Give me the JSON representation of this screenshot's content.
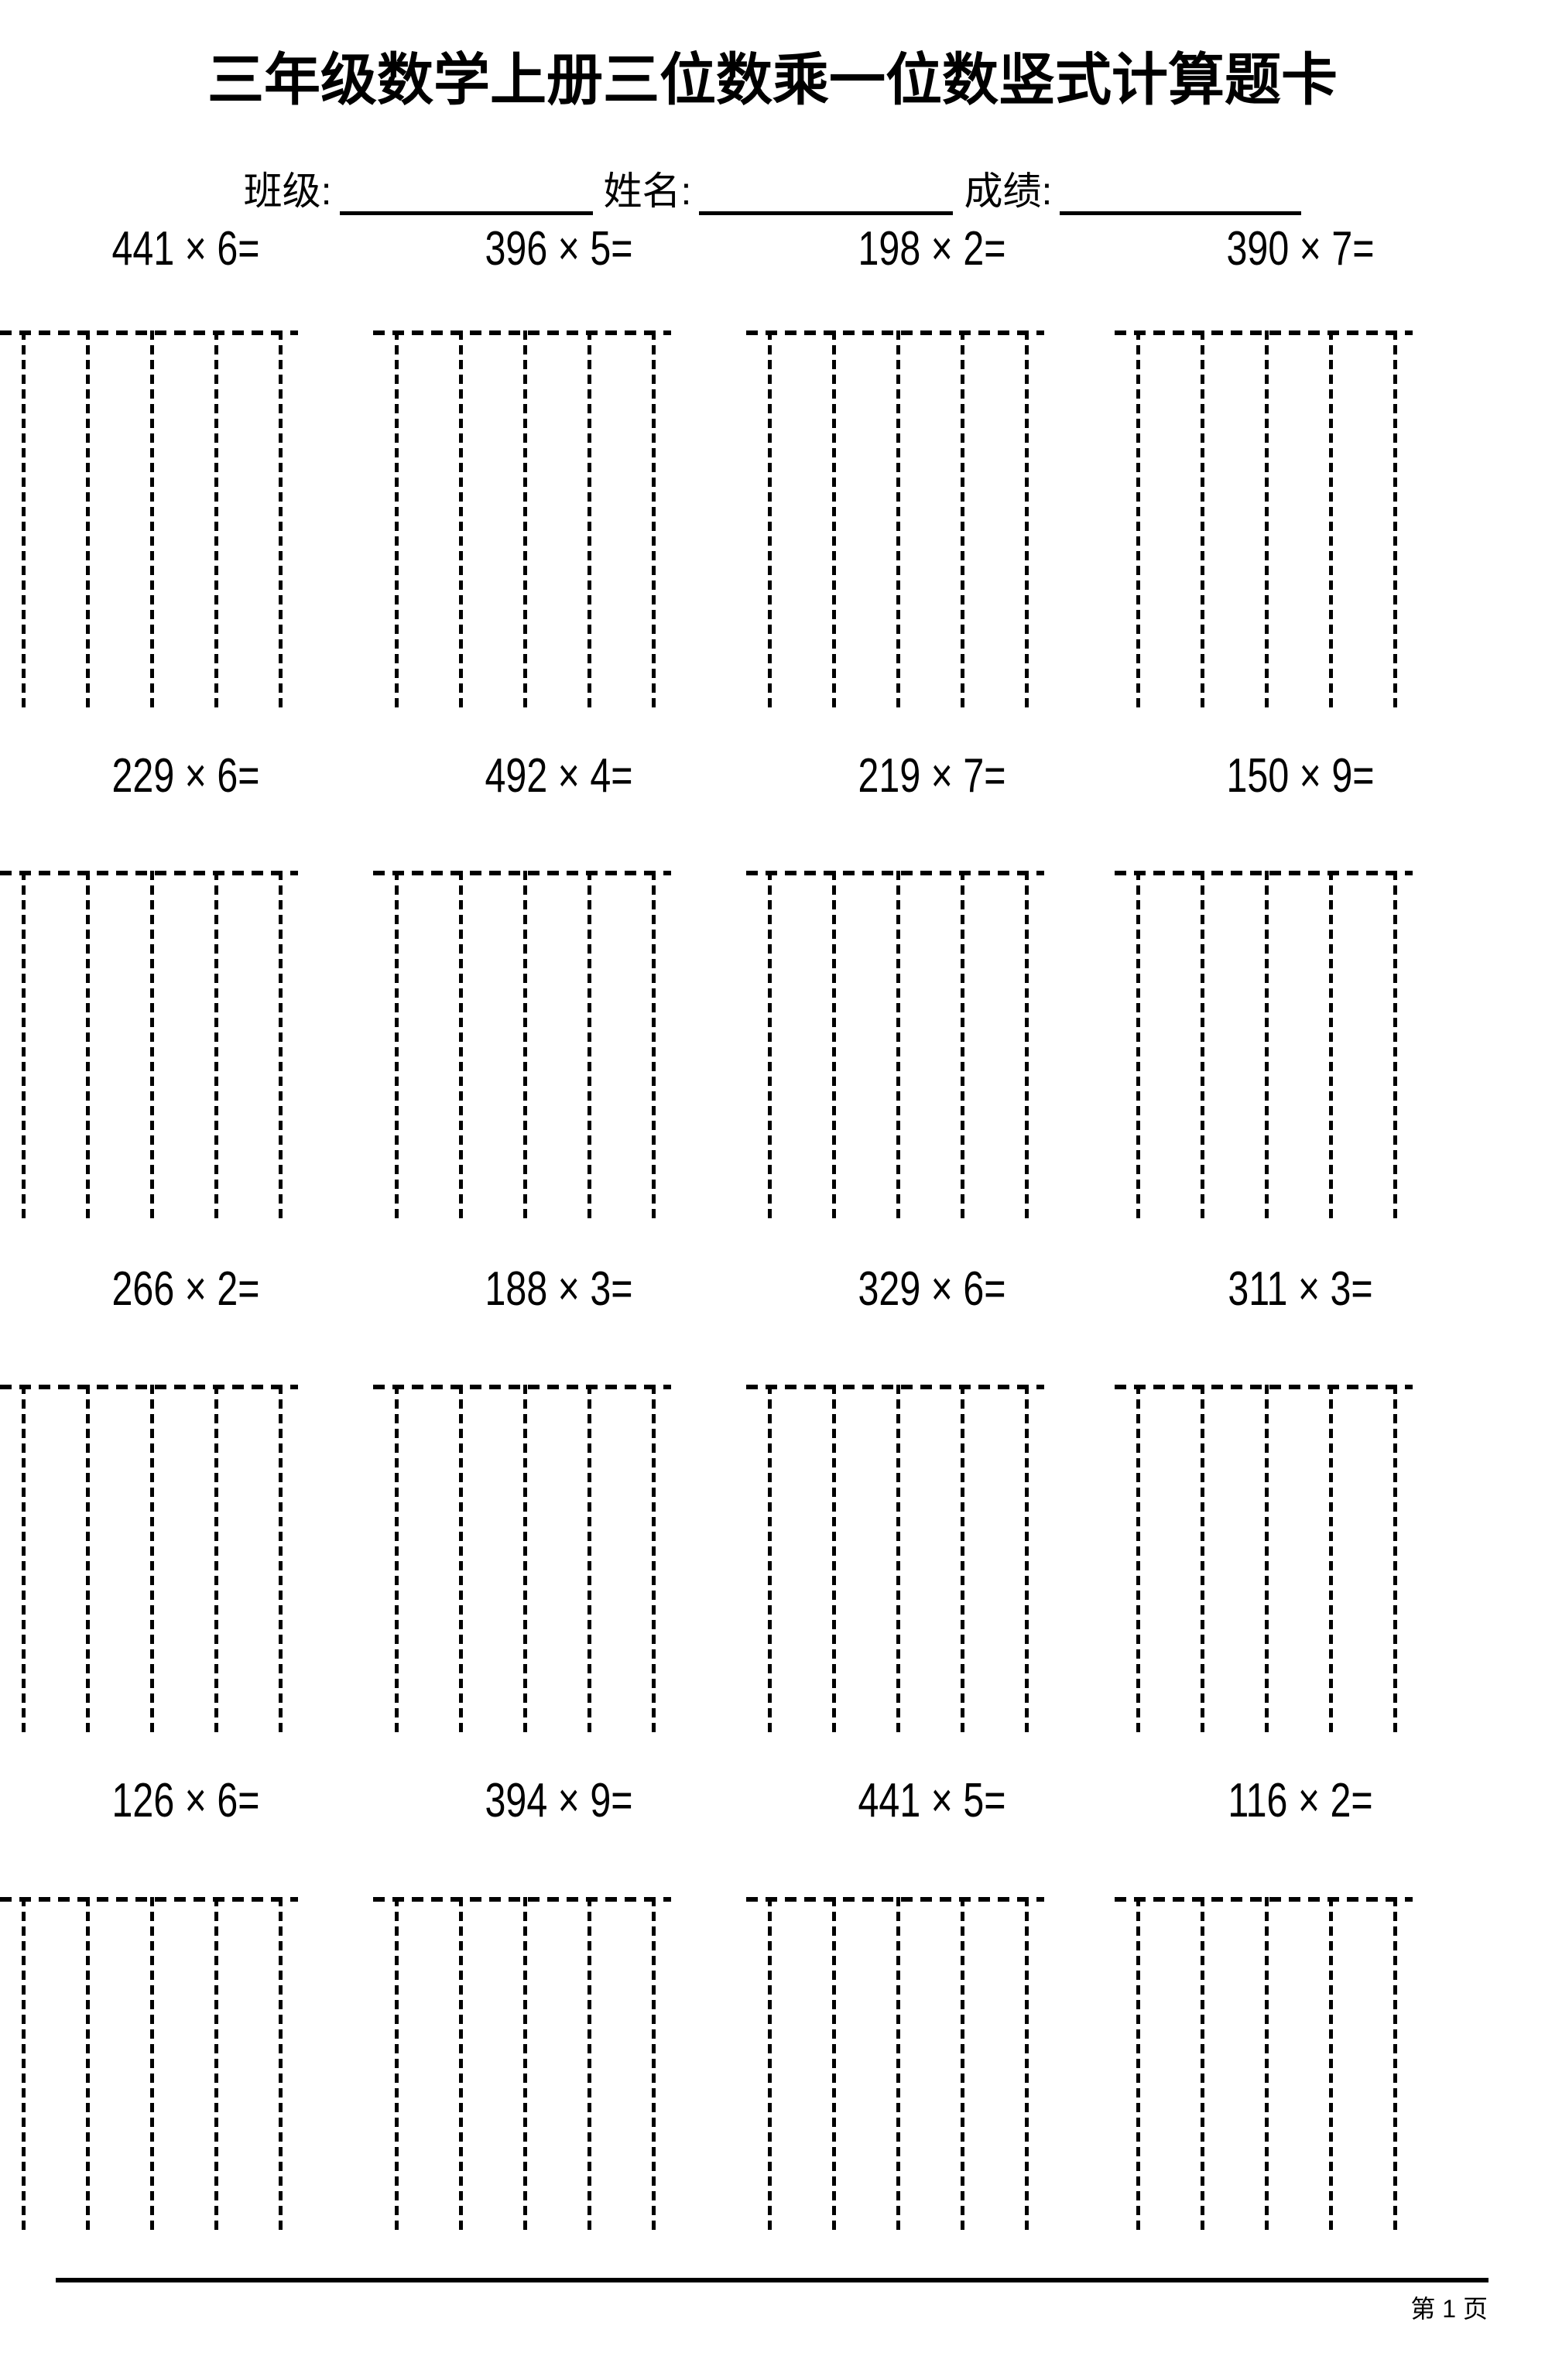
{
  "title": "三年级数学上册三位数乘一位数竖式计算题卡",
  "header": {
    "class_label": "班级:",
    "name_label": "姓名:",
    "score_label": "成绩:"
  },
  "rows": [
    {
      "problems": [
        "441 × 6=",
        "396 × 5=",
        "198 × 2=",
        "390 × 7="
      ]
    },
    {
      "problems": [
        "229 × 6=",
        "492 × 4=",
        "219 × 7=",
        "150 × 9="
      ]
    },
    {
      "problems": [
        "266 × 2=",
        "188 × 3=",
        "329 × 6=",
        "311 × 3="
      ]
    },
    {
      "problems": [
        "126 × 6=",
        "394 × 9=",
        "441 × 5=",
        "116 × 2="
      ]
    }
  ],
  "footer": {
    "page_label": "第 1 页"
  },
  "colors": {
    "ink": "#000000",
    "background": "#ffffff"
  }
}
